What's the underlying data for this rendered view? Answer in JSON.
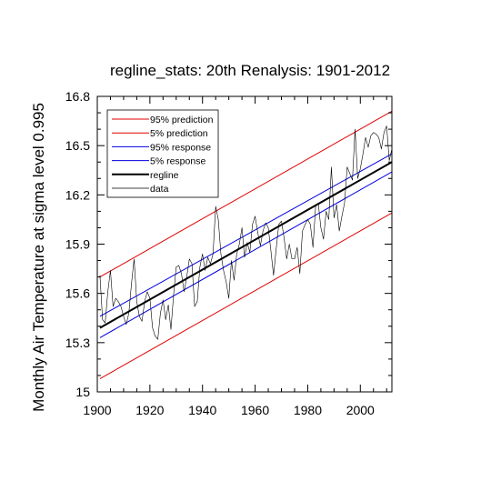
{
  "chart_data": {
    "type": "line",
    "title": "regline_stats: 20th Renalysis: 1901-2012",
    "xlabel": "",
    "ylabel": "Monthly Air Temperature at sigma level 0.995",
    "xlim": [
      1900,
      2012
    ],
    "ylim": [
      15.0,
      16.8
    ],
    "x_ticks": [
      1900,
      1920,
      1940,
      1960,
      1980,
      2000
    ],
    "y_ticks": [
      15,
      15.3,
      15.6,
      15.9,
      16.2,
      16.5,
      16.8
    ],
    "x_tick_labels": [
      "1900",
      "1920",
      "1940",
      "1960",
      "1980",
      "2000"
    ],
    "y_tick_labels": [
      "15",
      "15.3",
      "15.6",
      "15.9",
      "16.2",
      "16.5",
      "16.8"
    ],
    "grid": false,
    "legend_position": "top-left",
    "lines": [
      {
        "name": "95% prediction",
        "color": "#e00000",
        "width": 1,
        "x": [
          1901,
          2012
        ],
        "y": [
          15.7,
          16.71
        ]
      },
      {
        "name": "5% prediction",
        "color": "#e00000",
        "width": 1,
        "x": [
          1901,
          2012
        ],
        "y": [
          15.08,
          16.09
        ]
      },
      {
        "name": "95% response",
        "color": "#0000e0",
        "width": 1,
        "x": [
          1901,
          2012
        ],
        "y": [
          15.46,
          16.45
        ]
      },
      {
        "name": "5% response",
        "color": "#0000e0",
        "width": 1,
        "x": [
          1901,
          2012
        ],
        "y": [
          15.33,
          16.34
        ]
      },
      {
        "name": "regline",
        "color": "#000000",
        "width": 2,
        "x": [
          1901,
          2012
        ],
        "y": [
          15.39,
          16.4
        ]
      }
    ],
    "series": [
      {
        "name": "data",
        "color": "#000000",
        "width": 0.6,
        "x": [
          1901,
          1902,
          1903,
          1904,
          1905,
          1906,
          1907,
          1908,
          1909,
          1910,
          1911,
          1912,
          1913,
          1914,
          1915,
          1916,
          1917,
          1918,
          1919,
          1920,
          1921,
          1922,
          1923,
          1924,
          1925,
          1926,
          1927,
          1928,
          1929,
          1930,
          1931,
          1932,
          1933,
          1934,
          1935,
          1936,
          1937,
          1938,
          1939,
          1940,
          1941,
          1942,
          1943,
          1944,
          1945,
          1946,
          1947,
          1948,
          1949,
          1950,
          1951,
          1952,
          1953,
          1954,
          1955,
          1956,
          1957,
          1958,
          1959,
          1960,
          1961,
          1962,
          1963,
          1964,
          1965,
          1966,
          1967,
          1968,
          1969,
          1970,
          1971,
          1972,
          1973,
          1974,
          1975,
          1976,
          1977,
          1978,
          1979,
          1980,
          1981,
          1982,
          1983,
          1984,
          1985,
          1986,
          1987,
          1988,
          1989,
          1990,
          1991,
          1992,
          1993,
          1994,
          1995,
          1996,
          1997,
          1998,
          1999,
          2000,
          2001,
          2002,
          2003,
          2004,
          2005,
          2006,
          2007,
          2008,
          2009,
          2010,
          2011,
          2012
        ],
        "y": [
          15.71,
          15.44,
          15.42,
          15.61,
          15.74,
          15.52,
          15.57,
          15.55,
          15.52,
          15.46,
          15.41,
          15.48,
          15.66,
          15.81,
          15.55,
          15.46,
          15.43,
          15.55,
          15.61,
          15.57,
          15.39,
          15.34,
          15.32,
          15.48,
          15.56,
          15.44,
          15.53,
          15.38,
          15.59,
          15.76,
          15.77,
          15.72,
          15.61,
          15.7,
          15.81,
          15.78,
          15.52,
          15.55,
          15.76,
          15.84,
          15.74,
          15.82,
          15.78,
          15.84,
          16.13,
          16.05,
          15.84,
          15.74,
          15.67,
          15.57,
          15.8,
          15.68,
          15.84,
          15.9,
          16.0,
          15.82,
          15.91,
          15.85,
          16.02,
          16.07,
          15.97,
          15.89,
          15.98,
          16.03,
          16.0,
          15.86,
          15.71,
          15.87,
          16.02,
          16.04,
          15.94,
          15.81,
          15.9,
          15.81,
          15.81,
          15.88,
          15.72,
          15.98,
          16.02,
          16.05,
          16.02,
          15.88,
          16.13,
          16.15,
          16.0,
          15.93,
          16.1,
          16.05,
          16.37,
          16.06,
          16.14,
          15.98,
          16.07,
          16.15,
          16.37,
          16.33,
          16.29,
          16.6,
          16.3,
          16.36,
          16.45,
          16.55,
          16.49,
          16.56,
          16.58,
          16.57,
          16.55,
          16.48,
          16.58,
          16.62,
          16.41,
          16.48
        ]
      }
    ],
    "legend": [
      "95% prediction",
      "5% prediction",
      "95% response",
      "5% response",
      "regline",
      "data"
    ]
  }
}
